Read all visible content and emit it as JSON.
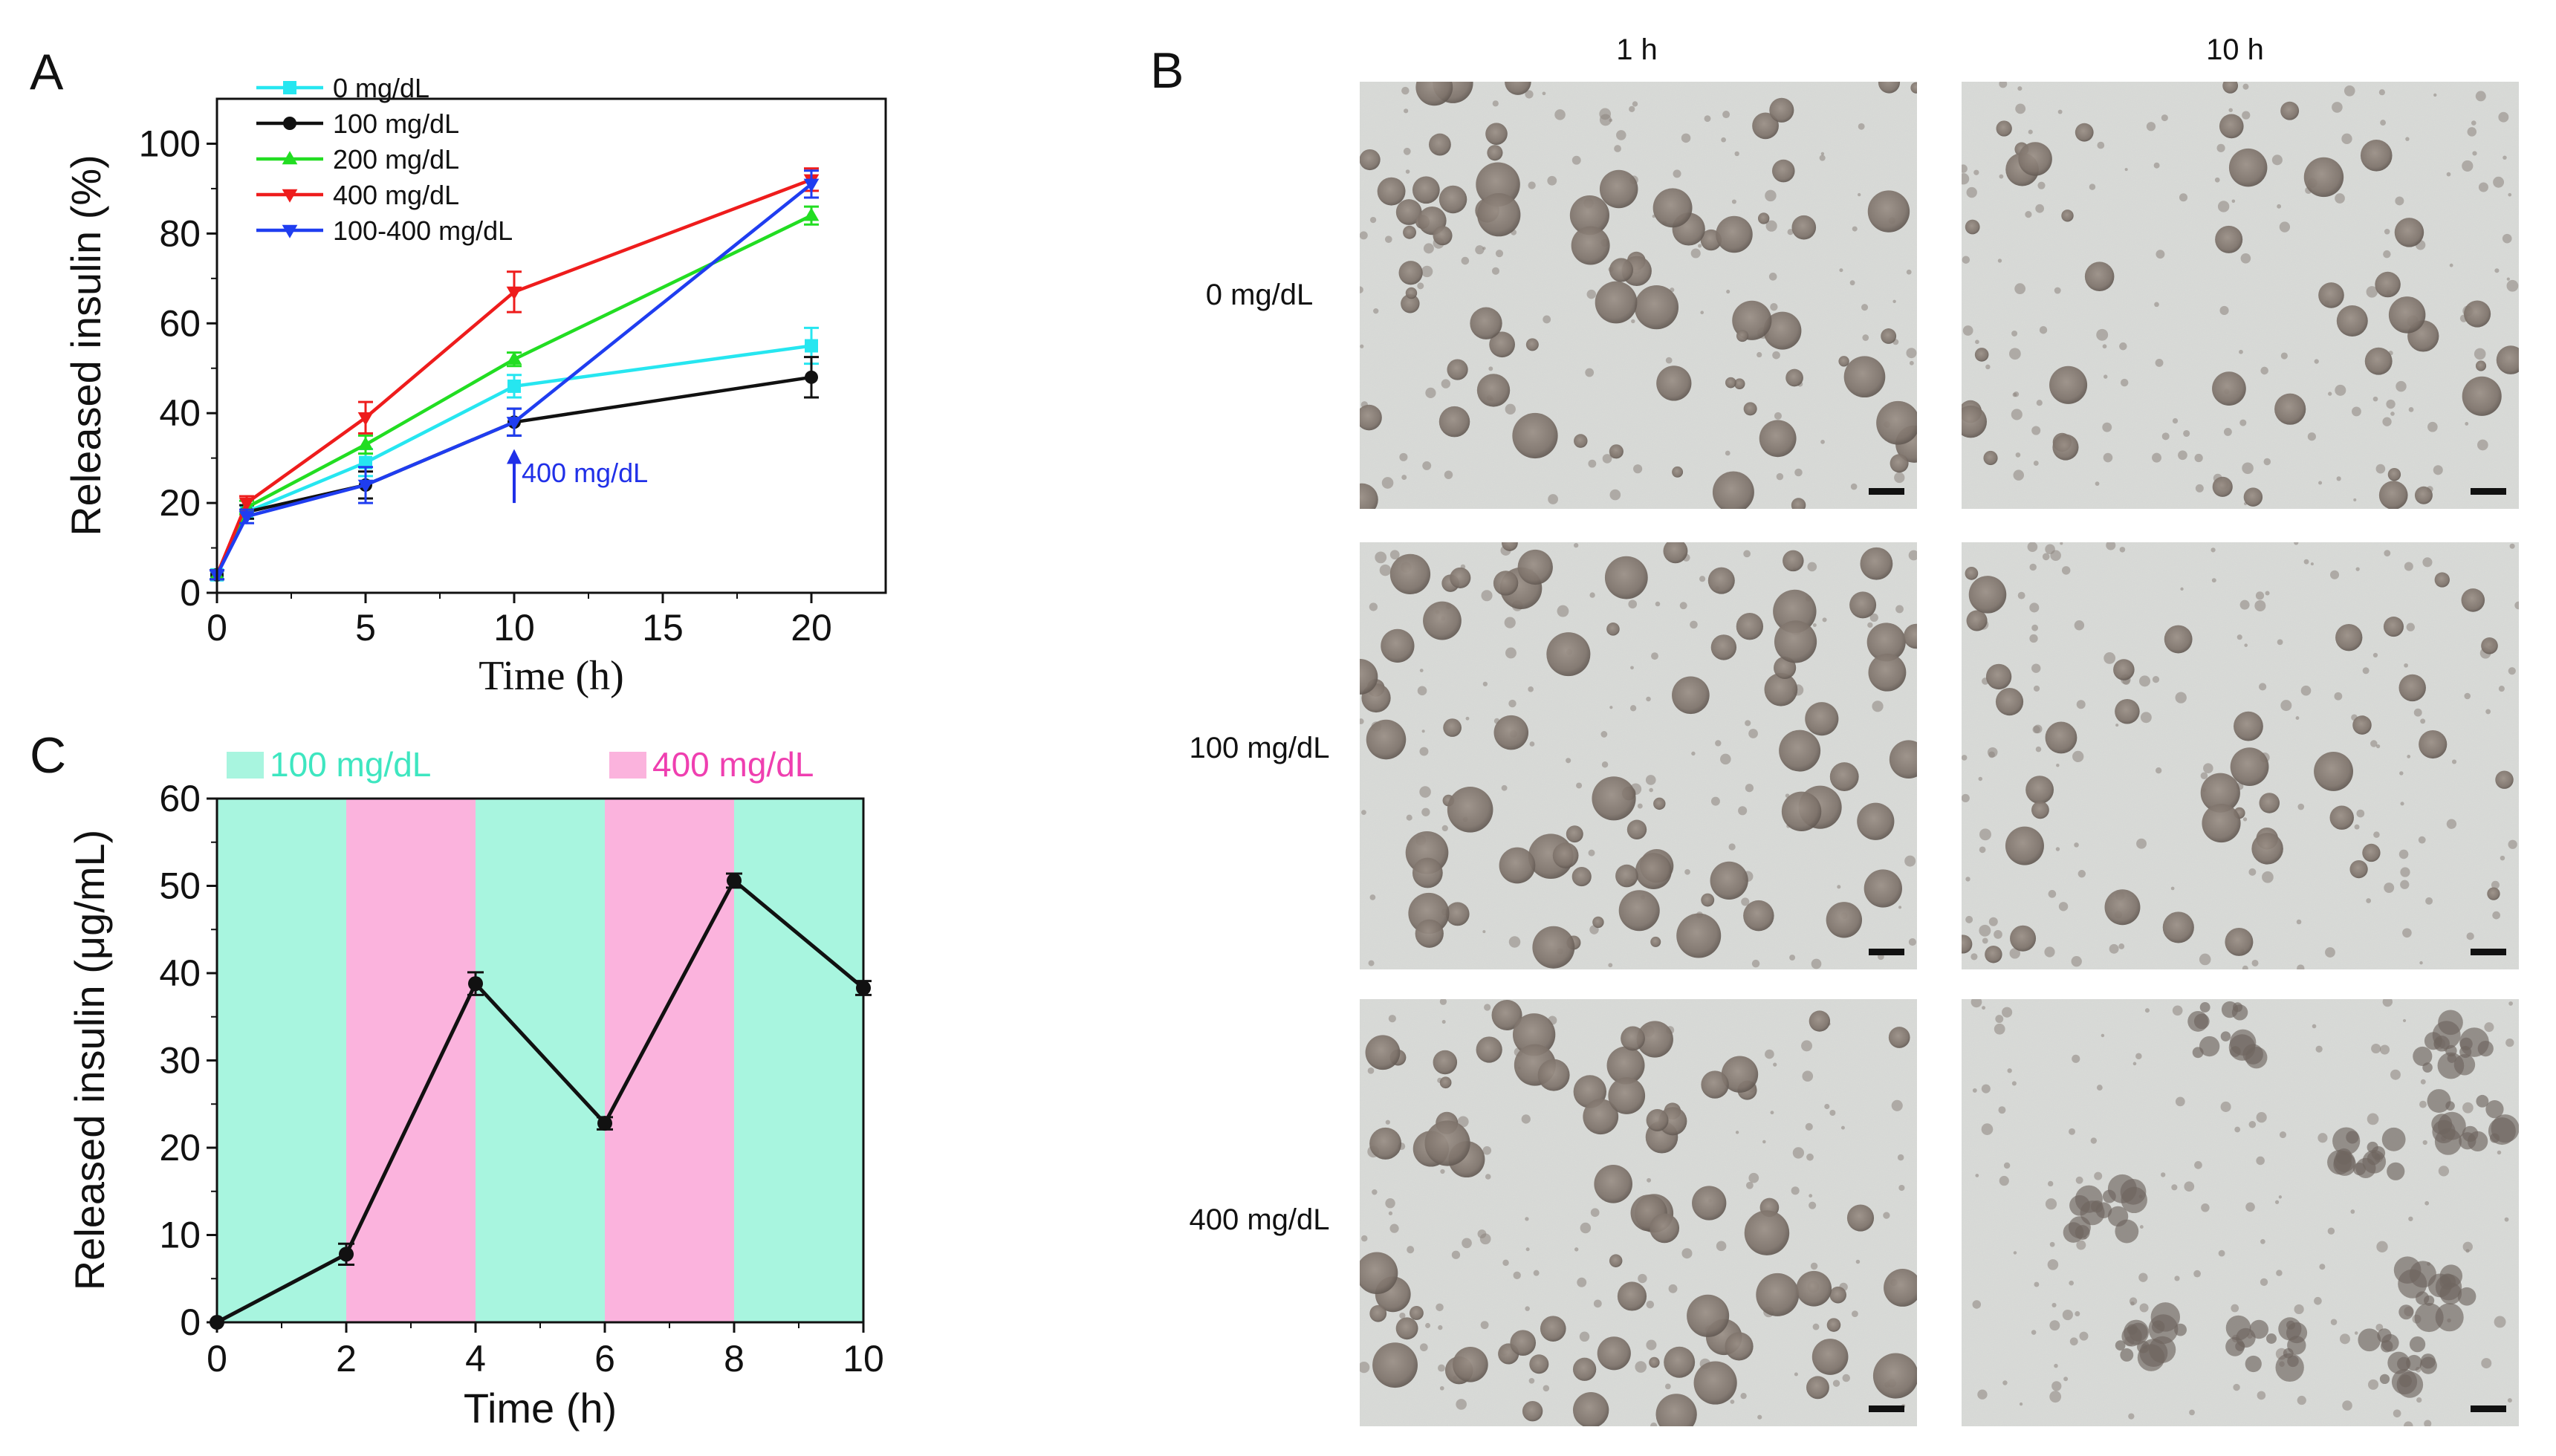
{
  "panels": {
    "a": "A",
    "b": "B",
    "c": "C"
  },
  "colors": {
    "cyan": "#26e6f0",
    "black": "#111111",
    "green": "#22dd22",
    "red": "#ee1c1c",
    "blue": "#1f3df0",
    "band_low": "#a8f5df",
    "band_high": "#fbb3dd",
    "band_low_text": "#3ee6c0",
    "band_high_text": "#ef3fb0",
    "annot_blue": "#2030e8"
  },
  "chart_data": [
    {
      "id": "A",
      "type": "line",
      "xlabel": "Time (h)",
      "ylabel": "Released insulin (%)",
      "xlim": [
        0,
        22.5
      ],
      "ylim": [
        0,
        110
      ],
      "xticks": [
        0,
        5,
        10,
        15,
        20
      ],
      "yticks": [
        0,
        20,
        40,
        60,
        80,
        100
      ],
      "series": [
        {
          "name": "0 mg/dL",
          "color": "#26e6f0",
          "marker": "square",
          "x": [
            0,
            1,
            5,
            10,
            20
          ],
          "values": [
            4,
            18,
            29,
            46,
            55
          ],
          "err": [
            1,
            1.5,
            3,
            2.5,
            4
          ]
        },
        {
          "name": "100 mg/dL",
          "color": "#111111",
          "marker": "circle",
          "x": [
            0,
            1,
            5,
            10,
            20
          ],
          "values": [
            4,
            18,
            24,
            38,
            48
          ],
          "err": [
            1,
            1.5,
            3,
            3,
            4.5
          ]
        },
        {
          "name": "200 mg/dL",
          "color": "#22dd22",
          "marker": "triangle-up",
          "x": [
            0,
            1,
            5,
            10,
            20
          ],
          "values": [
            4,
            19,
            33,
            52,
            84
          ],
          "err": [
            1,
            1.5,
            2,
            1.5,
            2
          ]
        },
        {
          "name": "400 mg/dL",
          "color": "#ee1c1c",
          "marker": "triangle-down",
          "x": [
            0,
            1,
            5,
            10,
            20
          ],
          "values": [
            4,
            20,
            39,
            67,
            92
          ],
          "err": [
            1,
            1.5,
            3.5,
            4.5,
            2.5
          ]
        },
        {
          "name": "100-400 mg/dL",
          "color": "#1f3df0",
          "marker": "triangle-down",
          "x": [
            0,
            1,
            5,
            10,
            20
          ],
          "values": [
            4,
            17,
            24,
            38,
            91
          ],
          "err": [
            1,
            1.5,
            4,
            3,
            3
          ]
        }
      ],
      "annotation": {
        "text": "400 mg/dL",
        "x": 10,
        "y_from": 20,
        "y_to": 32
      }
    },
    {
      "id": "C",
      "type": "line",
      "xlabel": "Time (h)",
      "ylabel": "Released insulin (μg/mL)",
      "xlim": [
        0,
        10
      ],
      "ylim": [
        0,
        60
      ],
      "xticks": [
        0,
        2,
        4,
        6,
        8,
        10
      ],
      "yticks": [
        0,
        10,
        20,
        30,
        40,
        50,
        60
      ],
      "bands": [
        {
          "from": 0,
          "to": 2,
          "level": "100 mg/dL"
        },
        {
          "from": 2,
          "to": 4,
          "level": "400 mg/dL"
        },
        {
          "from": 4,
          "to": 6,
          "level": "100 mg/dL"
        },
        {
          "from": 6,
          "to": 8,
          "level": "400 mg/dL"
        },
        {
          "from": 8,
          "to": 10,
          "level": "100 mg/dL"
        }
      ],
      "band_legend": [
        "100 mg/dL",
        "400 mg/dL"
      ],
      "series": [
        {
          "name": "insulin",
          "color": "#111111",
          "marker": "circle",
          "x": [
            0,
            2,
            4,
            6,
            8,
            10
          ],
          "values": [
            0,
            7.8,
            38.8,
            22.8,
            50.6,
            38.3
          ],
          "err": [
            0,
            1.2,
            1.3,
            0.7,
            0.8,
            0.8
          ]
        }
      ]
    }
  ],
  "micrographs": {
    "columns": [
      "1 h",
      "10 h"
    ],
    "rows": [
      "0 mg/dL",
      "100 mg/dL",
      "400 mg/dL"
    ]
  }
}
